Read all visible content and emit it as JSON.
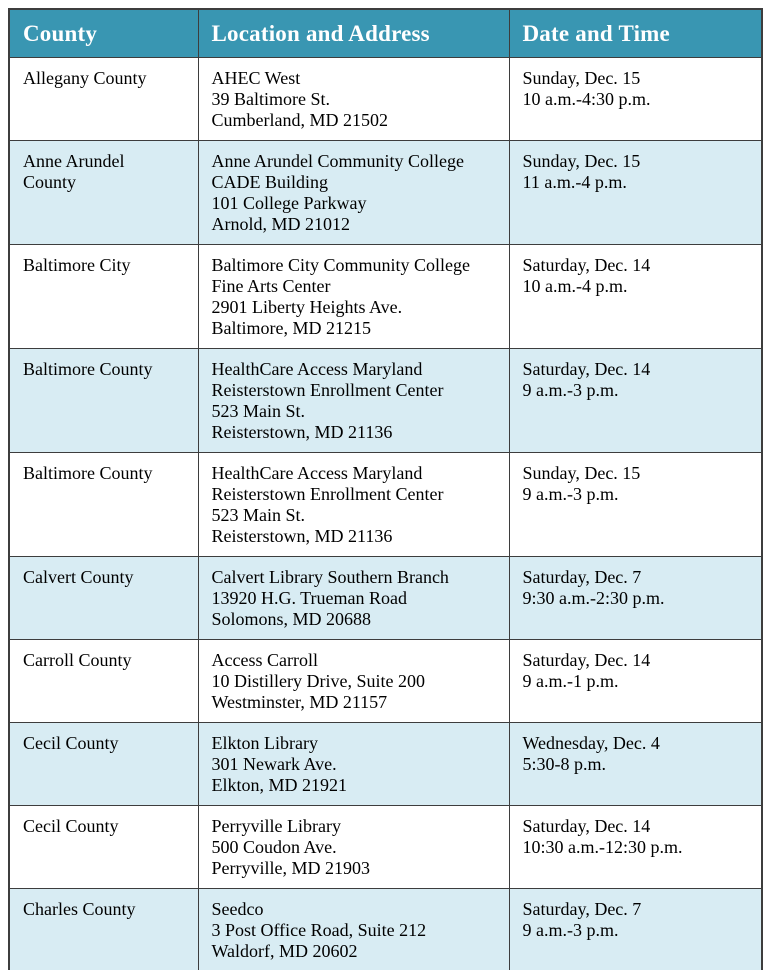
{
  "colors": {
    "header_bg": "#3996b2",
    "header_text": "#ffffff",
    "row_bg": "#ffffff",
    "row_alt_bg": "#d8ecf3",
    "border": "#3d3d3d",
    "body_text": "#000000"
  },
  "table": {
    "columns": [
      {
        "key": "county",
        "label": "County"
      },
      {
        "key": "location",
        "label": "Location and Address"
      },
      {
        "key": "datetime",
        "label": "Date and Time"
      }
    ],
    "rows": [
      {
        "county_lines": [
          "Allegany County"
        ],
        "location_lines": [
          "AHEC West",
          "39 Baltimore St.",
          "Cumberland, MD 21502"
        ],
        "datetime_lines": [
          "Sunday, Dec. 15",
          "10 a.m.-4:30 p.m."
        ]
      },
      {
        "county_lines": [
          "Anne Arundel",
          "County"
        ],
        "location_lines": [
          "Anne Arundel Community College",
          "CADE Building",
          "101 College Parkway",
          "Arnold, MD 21012"
        ],
        "datetime_lines": [
          "Sunday, Dec. 15",
          "11 a.m.-4 p.m."
        ]
      },
      {
        "county_lines": [
          "Baltimore City"
        ],
        "location_lines": [
          "Baltimore City Community College",
          "Fine Arts Center",
          "2901 Liberty Heights Ave.",
          "Baltimore, MD 21215"
        ],
        "datetime_lines": [
          "Saturday, Dec. 14",
          "10 a.m.-4 p.m."
        ]
      },
      {
        "county_lines": [
          "Baltimore County"
        ],
        "location_lines": [
          "HealthCare Access Maryland",
          "Reisterstown Enrollment Center",
          "523 Main St.",
          "Reisterstown, MD 21136"
        ],
        "datetime_lines": [
          "Saturday, Dec. 14",
          "9 a.m.-3 p.m."
        ]
      },
      {
        "county_lines": [
          "Baltimore County"
        ],
        "location_lines": [
          "HealthCare Access Maryland",
          "Reisterstown Enrollment Center",
          "523 Main St.",
          "Reisterstown, MD 21136"
        ],
        "datetime_lines": [
          "Sunday, Dec. 15",
          "9 a.m.-3 p.m."
        ]
      },
      {
        "county_lines": [
          "Calvert County"
        ],
        "location_lines": [
          "Calvert Library Southern Branch",
          "13920 H.G. Trueman Road",
          "Solomons, MD 20688"
        ],
        "datetime_lines": [
          "Saturday, Dec. 7",
          "9:30 a.m.-2:30 p.m."
        ]
      },
      {
        "county_lines": [
          "Carroll County"
        ],
        "location_lines": [
          "Access Carroll",
          "10 Distillery Drive, Suite 200",
          "Westminster, MD 21157"
        ],
        "datetime_lines": [
          "Saturday, Dec. 14",
          "9 a.m.-1 p.m."
        ]
      },
      {
        "county_lines": [
          "Cecil County"
        ],
        "location_lines": [
          "Elkton Library",
          "301 Newark Ave.",
          "Elkton, MD 21921"
        ],
        "datetime_lines": [
          "Wednesday, Dec. 4",
          "5:30-8 p.m."
        ]
      },
      {
        "county_lines": [
          "Cecil County"
        ],
        "location_lines": [
          "Perryville Library",
          "500 Coudon Ave.",
          "Perryville, MD 21903"
        ],
        "datetime_lines": [
          "Saturday, Dec. 14",
          "10:30 a.m.-12:30 p.m."
        ]
      },
      {
        "county_lines": [
          "Charles County"
        ],
        "location_lines": [
          "Seedco",
          "3 Post Office Road, Suite 212",
          "Waldorf, MD 20602"
        ],
        "datetime_lines": [
          "Saturday, Dec. 7",
          "9 a.m.-3 p.m."
        ]
      }
    ]
  }
}
